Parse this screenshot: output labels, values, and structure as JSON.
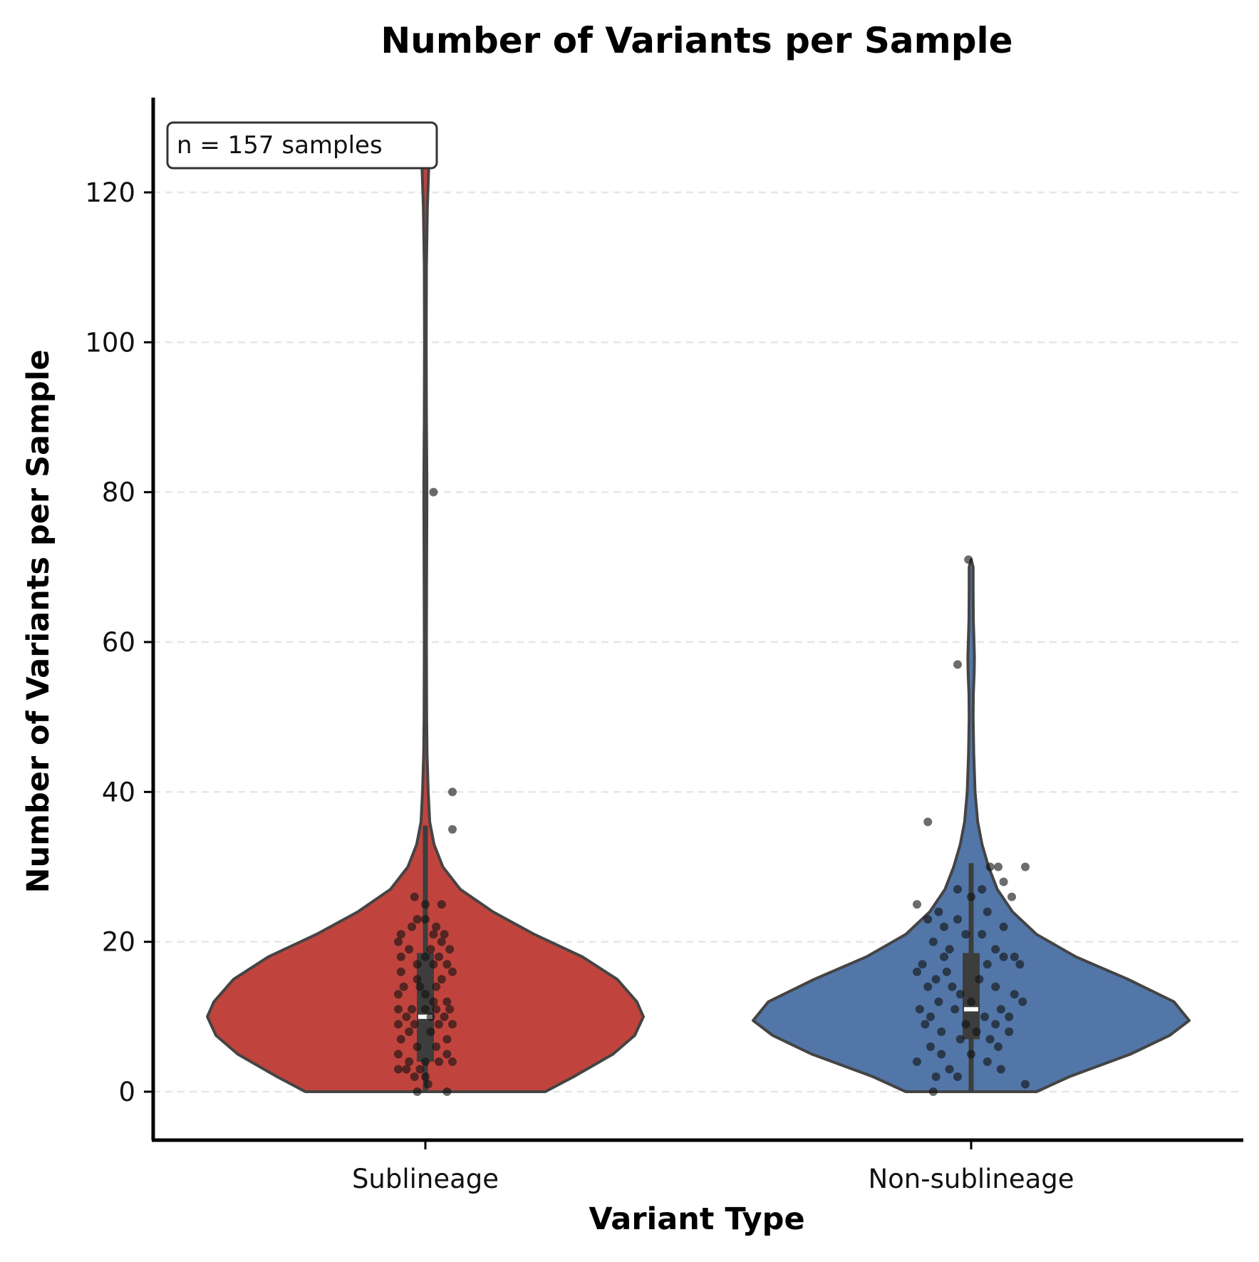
{
  "chart_data": {
    "type": "violin",
    "title": "Number of Variants per Sample",
    "xlabel": "Variant Type",
    "ylabel": "Number of Variants per Sample",
    "categories": [
      "Sublineage",
      "Non-sublineage"
    ],
    "ylim": [
      -6.5,
      132
    ],
    "yticks": [
      "0",
      "20",
      "40",
      "60",
      "80",
      "100",
      "120"
    ],
    "grid": "horizontal dashed",
    "annotation": "n = 157 samples",
    "colors": {
      "Sublineage": "#c0443d",
      "Non-sublineage": "#5276a8",
      "outline": "#444444",
      "points": "#111111",
      "grid": "#e6e6e6"
    },
    "series": [
      {
        "category": "Sublineage",
        "summary": {
          "min": 0,
          "q1": 4,
          "median": 10,
          "q3": 18.5,
          "whisker_high": 35.5,
          "max": 126
        },
        "density_profile": [
          [
            0,
            0.55
          ],
          [
            2,
            0.68
          ],
          [
            5,
            0.86
          ],
          [
            7.5,
            0.96
          ],
          [
            10,
            1.0
          ],
          [
            12,
            0.97
          ],
          [
            15,
            0.88
          ],
          [
            18,
            0.72
          ],
          [
            21,
            0.5
          ],
          [
            24,
            0.31
          ],
          [
            27,
            0.16
          ],
          [
            30,
            0.08
          ],
          [
            33,
            0.04
          ],
          [
            36,
            0.02
          ],
          [
            40,
            0.013
          ],
          [
            45,
            0.008
          ],
          [
            50,
            0.006
          ],
          [
            60,
            0.005
          ],
          [
            70,
            0.006
          ],
          [
            78,
            0.007
          ],
          [
            80,
            0.007
          ],
          [
            82,
            0.007
          ],
          [
            90,
            0.005
          ],
          [
            100,
            0.004
          ],
          [
            110,
            0.005
          ],
          [
            118,
            0.009
          ],
          [
            123,
            0.015
          ],
          [
            126,
            0.018
          ]
        ],
        "points": [
          [
            124,
            -0.08
          ],
          [
            80,
            0.03
          ],
          [
            40,
            0.1
          ],
          [
            35,
            0.1
          ],
          [
            26,
            -0.04
          ],
          [
            25,
            0.06
          ],
          [
            25,
            0.0
          ],
          [
            23,
            -0.03
          ],
          [
            23,
            0.0
          ],
          [
            22,
            0.04
          ],
          [
            22,
            -0.05
          ],
          [
            21,
            -0.09
          ],
          [
            21,
            0.07
          ],
          [
            21,
            0.03
          ],
          [
            20,
            -0.1
          ],
          [
            20,
            0.06
          ],
          [
            19,
            0.02
          ],
          [
            19,
            -0.06
          ],
          [
            19,
            0.09
          ],
          [
            18,
            -0.09
          ],
          [
            18,
            0.0
          ],
          [
            18,
            0.05
          ],
          [
            17,
            0.03
          ],
          [
            17,
            0.08
          ],
          [
            17,
            -0.03
          ],
          [
            16,
            -0.09
          ],
          [
            16,
            0.1
          ],
          [
            15,
            -0.03
          ],
          [
            15,
            0.06
          ],
          [
            14,
            -0.02
          ],
          [
            14,
            0.04
          ],
          [
            14,
            -0.08
          ],
          [
            13,
            0.0
          ],
          [
            13,
            -0.1
          ],
          [
            12,
            0.03
          ],
          [
            12,
            0.08
          ],
          [
            11,
            -0.1
          ],
          [
            11,
            -0.05
          ],
          [
            11,
            0.0
          ],
          [
            11,
            0.04
          ],
          [
            11,
            0.09
          ],
          [
            10,
            -0.07
          ],
          [
            10,
            0.02
          ],
          [
            10,
            0.07
          ],
          [
            9,
            -0.1
          ],
          [
            9,
            -0.04
          ],
          [
            9,
            0.05
          ],
          [
            9,
            0.1
          ],
          [
            8,
            -0.06
          ],
          [
            8,
            0.02
          ],
          [
            7,
            -0.09
          ],
          [
            7,
            0.08
          ],
          [
            6,
            -0.03
          ],
          [
            6,
            0.04
          ],
          [
            5,
            -0.1
          ],
          [
            5,
            0.08
          ],
          [
            4,
            -0.06
          ],
          [
            4,
            0.0
          ],
          [
            4,
            0.05
          ],
          [
            4,
            0.1
          ],
          [
            3,
            -0.1
          ],
          [
            3,
            -0.07
          ],
          [
            3,
            -0.02
          ],
          [
            2,
            0.0
          ],
          [
            2,
            -0.04
          ],
          [
            1,
            0.01
          ],
          [
            0,
            -0.03
          ],
          [
            0,
            0.08
          ]
        ]
      },
      {
        "category": "Non-sublineage",
        "summary": {
          "min": 0,
          "q1": 7,
          "median": 11,
          "q3": 18.5,
          "whisker_high": 30.5,
          "max": 71
        },
        "density_profile": [
          [
            0,
            0.3
          ],
          [
            2,
            0.45
          ],
          [
            5,
            0.73
          ],
          [
            7.5,
            0.91
          ],
          [
            9.5,
            1.0
          ],
          [
            12,
            0.93
          ],
          [
            15,
            0.72
          ],
          [
            18,
            0.48
          ],
          [
            21,
            0.3
          ],
          [
            24,
            0.19
          ],
          [
            27,
            0.12
          ],
          [
            30,
            0.08
          ],
          [
            33,
            0.05
          ],
          [
            36,
            0.03
          ],
          [
            40,
            0.018
          ],
          [
            45,
            0.012
          ],
          [
            50,
            0.009
          ],
          [
            53,
            0.01
          ],
          [
            56,
            0.014
          ],
          [
            58,
            0.015
          ],
          [
            60,
            0.013
          ],
          [
            63,
            0.01
          ],
          [
            67,
            0.009
          ],
          [
            70,
            0.009
          ],
          [
            71,
            0.0
          ]
        ],
        "points": [
          [
            71,
            -0.01
          ],
          [
            57,
            -0.05
          ],
          [
            36,
            -0.16
          ],
          [
            30,
            0.07
          ],
          [
            30,
            0.1
          ],
          [
            30,
            0.2
          ],
          [
            28,
            0.12
          ],
          [
            27,
            -0.05
          ],
          [
            27,
            0.04
          ],
          [
            26,
            0.15
          ],
          [
            26,
            0.0
          ],
          [
            25,
            -0.2
          ],
          [
            24,
            0.06
          ],
          [
            24,
            -0.12
          ],
          [
            23,
            -0.05
          ],
          [
            23,
            -0.16
          ],
          [
            22,
            -0.1
          ],
          [
            22,
            0.12
          ],
          [
            21,
            0.04
          ],
          [
            21,
            -0.02
          ],
          [
            20,
            -0.14
          ],
          [
            19,
            0.09
          ],
          [
            19,
            -0.08
          ],
          [
            18,
            -0.1
          ],
          [
            18,
            0.16
          ],
          [
            18,
            0.12
          ],
          [
            17,
            -0.18
          ],
          [
            17,
            0.18
          ],
          [
            17,
            0.06
          ],
          [
            16,
            -0.2
          ],
          [
            16,
            -0.09
          ],
          [
            15,
            0.03
          ],
          [
            15,
            -0.13
          ],
          [
            14,
            -0.07
          ],
          [
            14,
            0.09
          ],
          [
            14,
            -0.16
          ],
          [
            13,
            0.16
          ],
          [
            13,
            -0.04
          ],
          [
            12,
            0.0
          ],
          [
            12,
            -0.12
          ],
          [
            12,
            0.19
          ],
          [
            11,
            -0.19
          ],
          [
            11,
            0.11
          ],
          [
            11,
            -0.06
          ],
          [
            10,
            -0.15
          ],
          [
            10,
            0.05
          ],
          [
            10,
            0.14
          ],
          [
            9,
            -0.02
          ],
          [
            9,
            -0.17
          ],
          [
            9,
            0.09
          ],
          [
            8,
            0.02
          ],
          [
            8,
            0.14
          ],
          [
            8,
            -0.11
          ],
          [
            7,
            -0.04
          ],
          [
            7,
            0.07
          ],
          [
            6,
            -0.15
          ],
          [
            6,
            0.1
          ],
          [
            5,
            0.0
          ],
          [
            5,
            -0.11
          ],
          [
            4,
            0.06
          ],
          [
            4,
            -0.2
          ],
          [
            3,
            -0.08
          ],
          [
            3,
            0.11
          ],
          [
            2,
            -0.13
          ],
          [
            2,
            -0.05
          ],
          [
            1,
            0.2
          ],
          [
            0,
            -0.14
          ]
        ]
      }
    ]
  }
}
